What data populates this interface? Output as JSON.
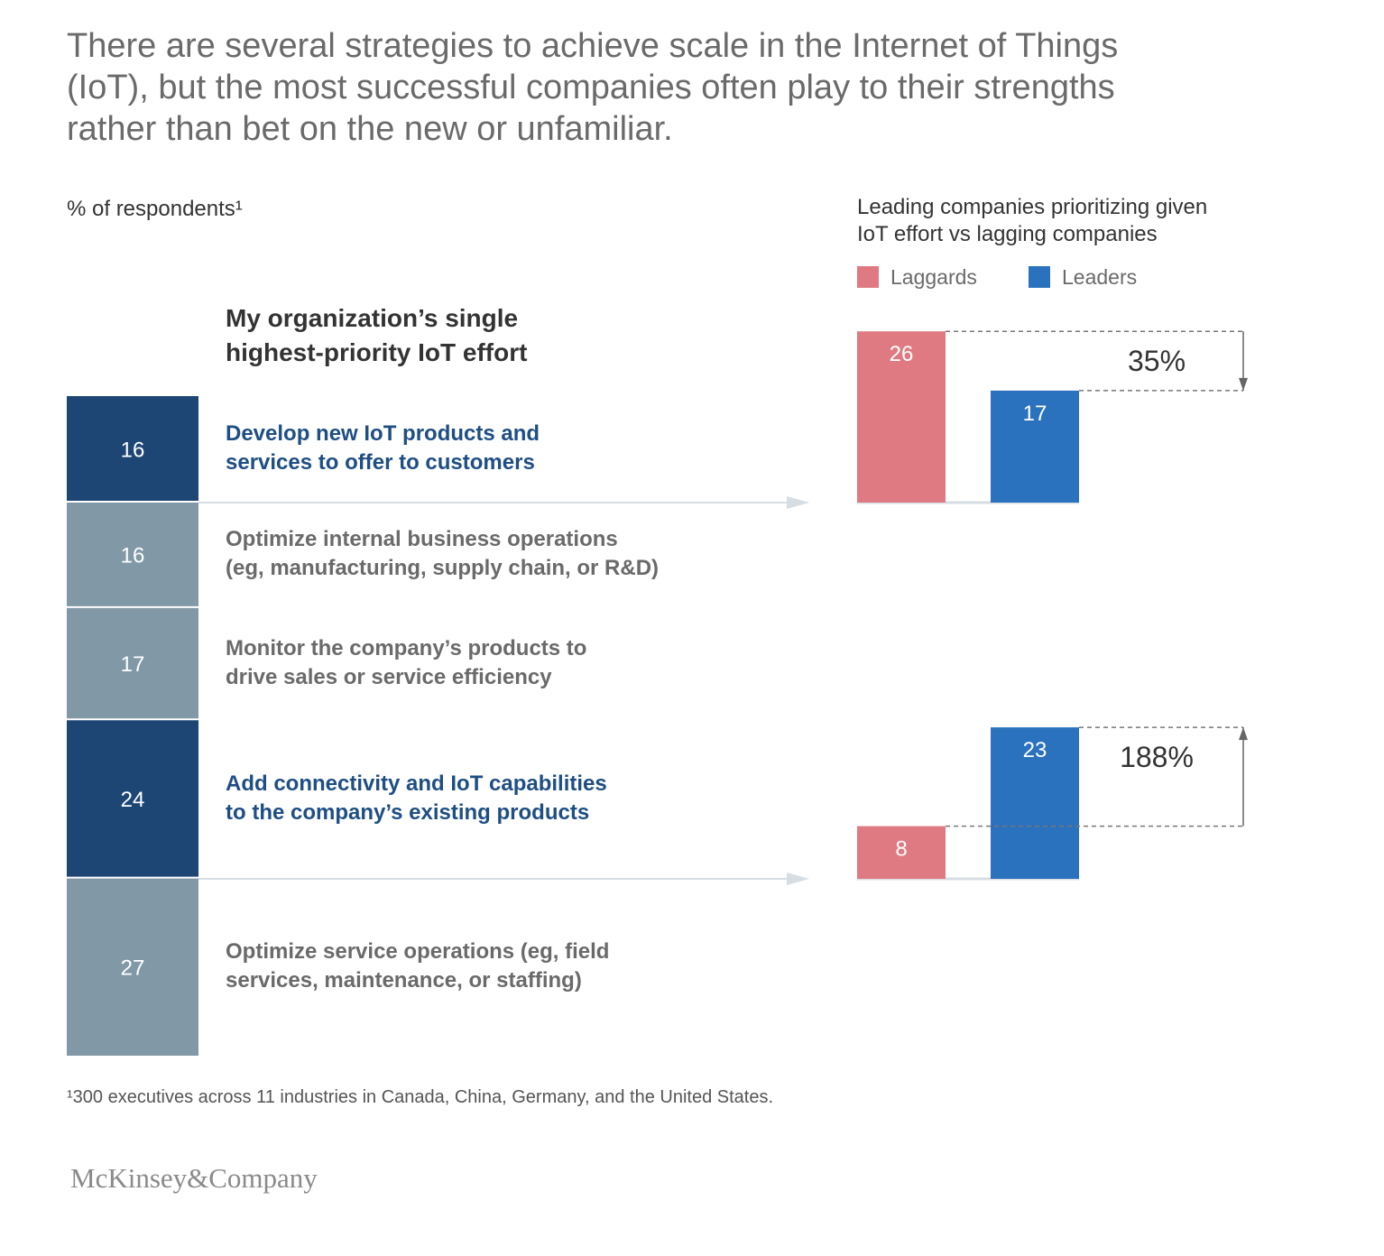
{
  "headline": "There are several strategies to achieve scale in the Internet of Things\n(IoT), but the most successful companies often play to their strengths\nrather than bet on the new or unfamiliar.",
  "unit_label": "% of respondents¹",
  "column_title": "My organization’s single\nhighest-priority IoT effort",
  "right_title": "Leading companies prioritizing given\nIoT effort vs lagging companies",
  "footnote": "¹300 executives across 11 industries in Canada, China, Germany, and the United States.",
  "logo_text": "McKinsey&Company",
  "colors": {
    "highlight_segment": "#1d4675",
    "other_segment": "#8199a6",
    "highlight_text": "#1e4e84",
    "other_text": "#6a6a6a",
    "laggards": "#e07a82",
    "leaders": "#2a72bd",
    "connector": "#d6dde3"
  },
  "chart_data": [
    {
      "type": "bar",
      "orientation": "stacked-vertical",
      "ylabel": "% of respondents¹",
      "title": "My organization’s single\nhighest-priority IoT effort",
      "total": 100,
      "segments": [
        {
          "value": 16,
          "label": "Develop new IoT products and\nservices to offer to customers",
          "highlight": true
        },
        {
          "value": 16,
          "label": "Optimize internal business operations\n(eg, manufacturing, supply chain, or R&D)",
          "highlight": false
        },
        {
          "value": 17,
          "label": "Monitor the company’s products to\ndrive sales or service efficiency",
          "highlight": false
        },
        {
          "value": 24,
          "label": "Add connectivity and IoT capabilities\nto the company’s existing products",
          "highlight": true
        },
        {
          "value": 27,
          "label": "Optimize service operations (eg, field\nservices, maintenance, or staffing)",
          "highlight": false
        }
      ]
    },
    {
      "type": "bar",
      "title": "Leading companies prioritizing given\nIoT effort vs lagging companies",
      "legend": [
        {
          "name": "Laggards",
          "color": "#e07a82"
        },
        {
          "name": "Leaders",
          "color": "#2a72bd"
        }
      ],
      "legend_position": "top-left",
      "groups": [
        {
          "effort": "Develop new IoT products and services to offer to customers",
          "laggards": 26,
          "leaders": 17,
          "difference": "35%",
          "direction": "down"
        },
        {
          "effort": "Add connectivity and IoT capabilities to the company’s existing products",
          "laggards": 8,
          "leaders": 23,
          "difference": "188%",
          "direction": "up"
        }
      ]
    }
  ]
}
